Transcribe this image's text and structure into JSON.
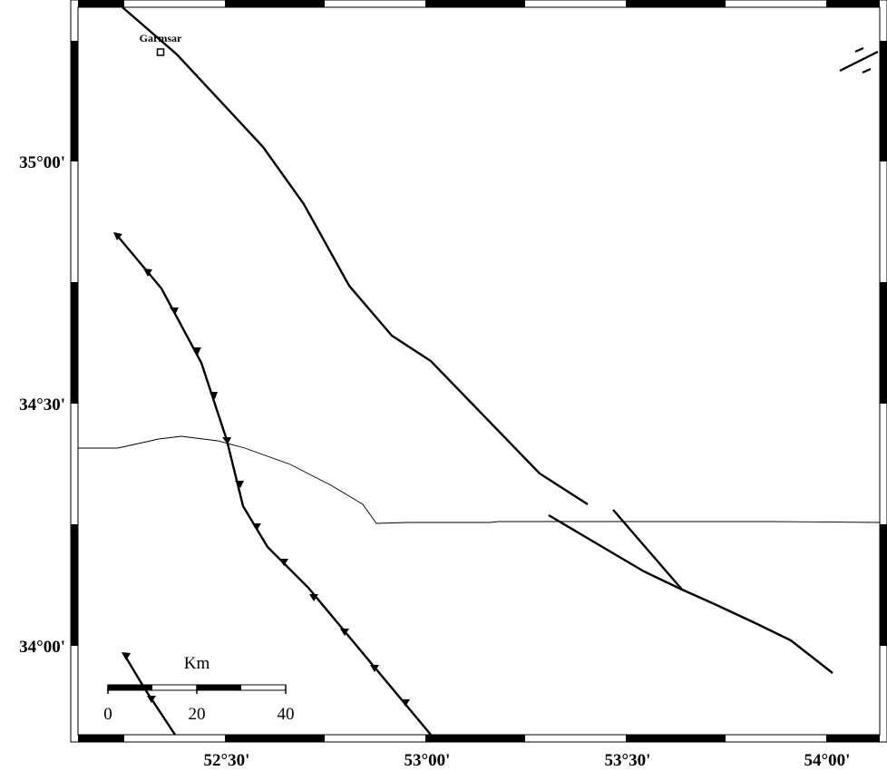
{
  "place": {
    "name": "Garmsar"
  },
  "latitude_labels": [
    "35°00'",
    "34°30'",
    "34°00'"
  ],
  "longitude_labels": [
    "52°30'",
    "53°00'",
    "53°30'",
    "54°00'"
  ],
  "scale_bar": {
    "unit": "Km",
    "ticks": [
      0,
      20,
      40
    ]
  }
}
